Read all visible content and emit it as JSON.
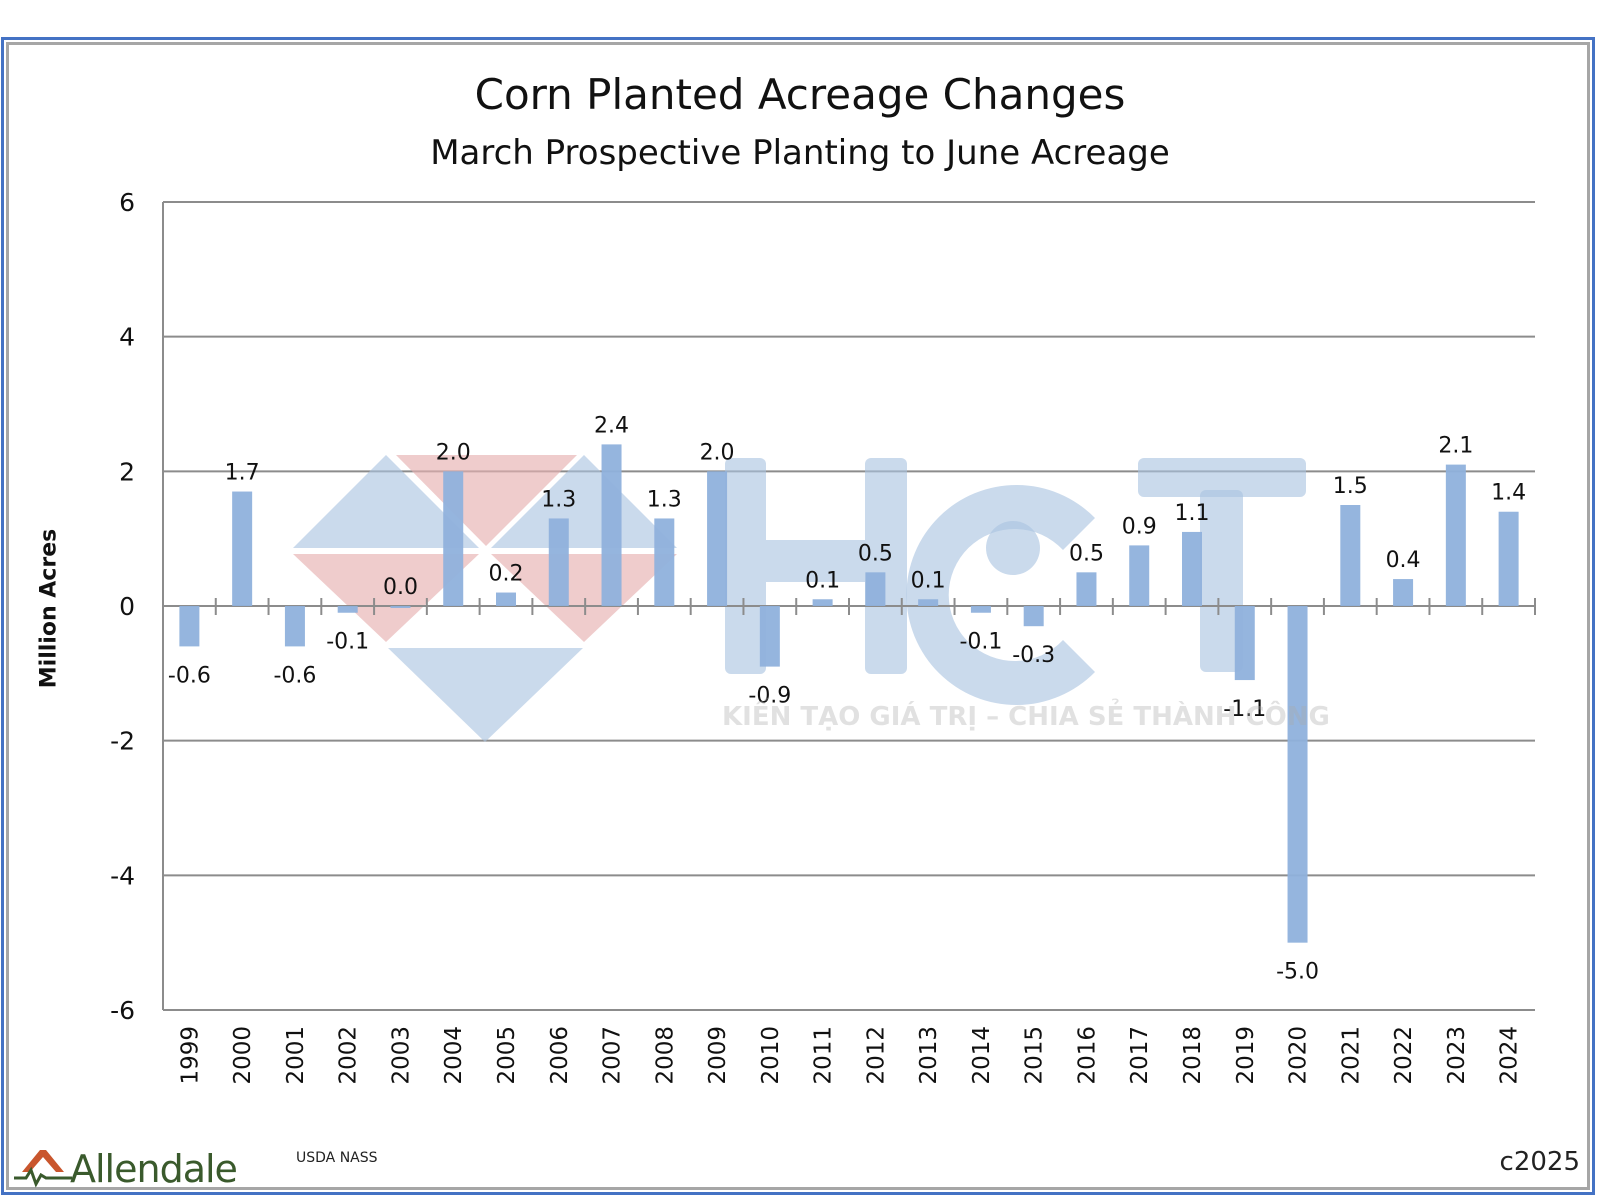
{
  "chart_data": {
    "type": "bar",
    "title": "Corn Planted Acreage Changes",
    "subtitle": "March Prospective Planting to June Acreage",
    "xlabel": "",
    "ylabel": "Million Acres",
    "ylim": [
      -6,
      6
    ],
    "yticks": [
      "6",
      "4",
      "2",
      "0",
      "-2",
      "-4",
      "-6"
    ],
    "ytick_values": [
      6,
      4,
      2,
      0,
      -2,
      -4,
      -6
    ],
    "grid": true,
    "legend": "none",
    "categories": [
      "1999",
      "2000",
      "2001",
      "2002",
      "2003",
      "2004",
      "2005",
      "2006",
      "2007",
      "2008",
      "2009",
      "2010",
      "2011",
      "2012",
      "2013",
      "2014",
      "2015",
      "2016",
      "2017",
      "2018",
      "2019",
      "2020",
      "2021",
      "2022",
      "2023",
      "2024"
    ],
    "values": [
      -0.6,
      1.7,
      -0.6,
      -0.1,
      0.0,
      2.0,
      0.2,
      1.3,
      2.4,
      1.3,
      2.0,
      -0.9,
      0.1,
      0.5,
      0.1,
      -0.1,
      -0.3,
      0.5,
      0.9,
      1.1,
      -1.1,
      -5.0,
      1.5,
      0.4,
      2.1,
      1.4
    ],
    "data_labels": [
      "-0.6",
      "1.7",
      "-0.6",
      "-0.1",
      "0.0",
      "2.0",
      "0.2",
      "1.3",
      "2.4",
      "1.3",
      "2.0",
      "-0.9",
      "0.1",
      "0.5",
      "0.1",
      "-0.1",
      "-0.3",
      "0.5",
      "0.9",
      "1.1",
      "-1.1",
      "-5.0",
      "1.5",
      "0.4",
      "2.1",
      "1.4"
    ]
  },
  "colors": {
    "bar": "#8fb1dc",
    "grid": "#8c8c8c",
    "frame_outer": "#4472c4",
    "frame_inner": "#a6a6a6",
    "wm_blue": "#a9c3e0",
    "wm_red": "#e6b1b1",
    "logo_green": "#3a5a2c",
    "logo_orange": "#c9562d"
  },
  "footer": {
    "logo_text": "Allendale",
    "source": "USDA NASS",
    "copyright": "c2025"
  },
  "watermark": {
    "letters": "HCT",
    "tagline": "KIẾN TẠO GIÁ TRỊ – CHIA SẺ THÀNH CÔNG"
  }
}
